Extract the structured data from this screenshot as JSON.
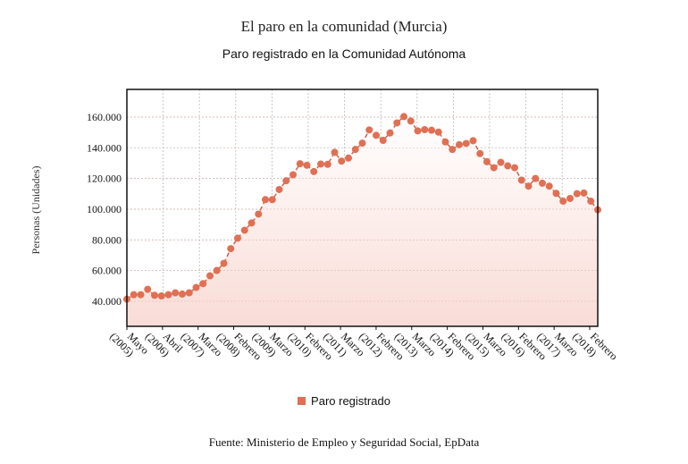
{
  "chart_data": {
    "type": "area",
    "title": "El paro en la comunidad (Murcia)",
    "subtitle": "Paro registrado en la Comunidad Autónoma",
    "xlabel": "",
    "ylabel": "Personas (Unidades)",
    "ylim": [
      23700,
      178000
    ],
    "yticks": [
      40000,
      60000,
      80000,
      100000,
      120000,
      140000,
      160000
    ],
    "ytick_labels": [
      "40.000",
      "60.000",
      "80.000",
      "100.000",
      "120.000",
      "140.000",
      "160.000"
    ],
    "xtick_labels": [
      [
        "Mayo",
        "(2005)"
      ],
      [
        "Abril",
        "(2006)"
      ],
      [
        "Marzo",
        "(2007)"
      ],
      [
        "Febrero",
        "(2008)"
      ],
      [
        "Marzo",
        "(2009)"
      ],
      [
        "Febrero",
        "(2010)"
      ],
      [
        "Marzo",
        "(2011)"
      ],
      [
        "Febrero",
        "(2012)"
      ],
      [
        "Marzo",
        "(2013)"
      ],
      [
        "Febrero",
        "(2014)"
      ],
      [
        "Marzo",
        "(2015)"
      ],
      [
        "Febrero",
        "(2016)"
      ],
      [
        "Marzo",
        "(2017)"
      ],
      [
        "Febrero",
        "(2018)"
      ]
    ],
    "grid": true,
    "legend_position": "bottom-center",
    "series": [
      {
        "name": "Paro registrado",
        "color": "#e07054",
        "values": [
          41400,
          44300,
          44300,
          47800,
          43900,
          43500,
          44300,
          45500,
          44700,
          45500,
          49000,
          51500,
          56600,
          60100,
          64700,
          74300,
          81100,
          86300,
          91000,
          96800,
          106200,
          106200,
          112800,
          118500,
          122400,
          129600,
          128600,
          124500,
          129400,
          129200,
          137000,
          131300,
          133300,
          138900,
          143000,
          151600,
          148100,
          144800,
          149600,
          156200,
          160300,
          157400,
          151000,
          151800,
          151400,
          150200,
          143800,
          138900,
          142000,
          142800,
          144600,
          136200,
          130900,
          127000,
          130500,
          128200,
          127000,
          118900,
          115000,
          120000,
          116900,
          115000,
          110300,
          105200,
          107000,
          110100,
          110500,
          105200,
          99600
        ]
      }
    ]
  },
  "source": "Fuente: Ministerio de Empleo y Seguridad Social, EpData"
}
